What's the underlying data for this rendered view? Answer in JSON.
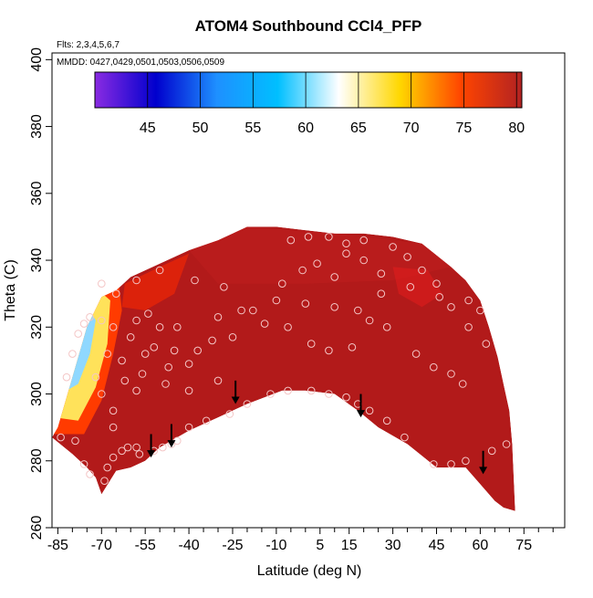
{
  "chart_data": {
    "type": "heatmap",
    "title": "ATOM4 Southbound CCl4_PFP",
    "subtitle_flights": "Flts: 2,3,4,5,6,7",
    "subtitle_dates": "MMDD: 0427,0429,0501,0503,0506,0509",
    "xlabel": "Latitude (deg N)",
    "ylabel": "Theta (C)",
    "x_tick_labels": [
      "-85",
      "-70",
      "-55",
      "-40",
      "-25",
      "-10",
      "5",
      "15",
      "30",
      "45",
      "60",
      "75"
    ],
    "x_tick_values": [
      -85,
      -70,
      -55,
      -40,
      -25,
      -10,
      5,
      15,
      30,
      45,
      60,
      75
    ],
    "x_minor_ticks": [
      -80,
      -75,
      -65,
      -60,
      -50,
      -45,
      -35,
      -30,
      -20,
      -15,
      -5,
      0,
      10,
      20,
      25,
      35,
      40,
      50,
      55,
      65,
      70,
      80,
      85
    ],
    "y_tick_labels": [
      "260",
      "280",
      "300",
      "320",
      "340",
      "360",
      "380",
      "400"
    ],
    "y_tick_values": [
      260,
      280,
      300,
      320,
      340,
      360,
      380,
      400
    ],
    "xlim": [
      -87,
      89
    ],
    "ylim": [
      260,
      402
    ],
    "colorbar": {
      "tick_labels": [
        "45",
        "50",
        "55",
        "60",
        "65",
        "70",
        "75",
        "80"
      ],
      "tick_values": [
        45,
        50,
        55,
        60,
        65,
        70,
        75,
        80
      ],
      "range": [
        40,
        80.5
      ],
      "colors": [
        "#8a2be2",
        "#0000cd",
        "#1e90ff",
        "#00bfff",
        "#ffffff",
        "#ffd700",
        "#ff4500",
        "#b22222"
      ]
    },
    "field_boundary": {
      "upper_theta": [
        [
          -87,
          287
        ],
        [
          -85,
          290
        ],
        [
          -80,
          305
        ],
        [
          -75,
          320
        ],
        [
          -70,
          329
        ],
        [
          -65,
          331
        ],
        [
          -60,
          335
        ],
        [
          -50,
          339
        ],
        [
          -40,
          343
        ],
        [
          -30,
          346
        ],
        [
          -20,
          350
        ],
        [
          -10,
          350
        ],
        [
          0,
          349
        ],
        [
          10,
          348
        ],
        [
          20,
          348
        ],
        [
          30,
          347
        ],
        [
          40,
          345
        ],
        [
          50,
          338
        ],
        [
          55,
          334
        ],
        [
          60,
          328
        ],
        [
          63,
          320
        ],
        [
          66,
          311
        ],
        [
          68,
          303
        ],
        [
          70,
          295
        ],
        [
          71,
          285
        ],
        [
          72,
          265
        ]
      ],
      "lower_theta": [
        [
          72,
          265
        ],
        [
          68,
          266
        ],
        [
          65,
          268
        ],
        [
          60,
          273
        ],
        [
          55,
          278
        ],
        [
          45,
          278
        ],
        [
          35,
          285
        ],
        [
          25,
          290
        ],
        [
          18,
          295
        ],
        [
          10,
          300
        ],
        [
          0,
          301
        ],
        [
          -8,
          301
        ],
        [
          -20,
          297
        ],
        [
          -30,
          293
        ],
        [
          -40,
          289
        ],
        [
          -50,
          284
        ],
        [
          -55,
          280
        ],
        [
          -60,
          278
        ],
        [
          -65,
          277
        ],
        [
          -70,
          270
        ],
        [
          -72,
          275
        ],
        [
          -75,
          278
        ],
        [
          -80,
          282
        ],
        [
          -87,
          287
        ]
      ]
    },
    "cold_region": {
      "blue_core": [
        [
          -84,
          300
        ],
        [
          -82,
          310
        ],
        [
          -78,
          319
        ],
        [
          -74,
          325
        ],
        [
          -72,
          322
        ],
        [
          -74,
          312
        ],
        [
          -78,
          303
        ]
      ],
      "light_band": [
        [
          -86,
          293
        ],
        [
          -82,
          306
        ],
        [
          -76,
          322
        ],
        [
          -71,
          331
        ],
        [
          -67,
          328
        ],
        [
          -68,
          315
        ],
        [
          -72,
          302
        ],
        [
          -78,
          292
        ]
      ],
      "yellow_band": [
        [
          -87,
          288
        ],
        [
          -82,
          306
        ],
        [
          -72,
          332
        ],
        [
          -64,
          333
        ],
        [
          -63,
          325
        ],
        [
          -66,
          312
        ],
        [
          -70,
          298
        ],
        [
          -76,
          288
        ]
      ]
    },
    "samples": [
      [
        -84,
        287
      ],
      [
        -79,
        286
      ],
      [
        -76,
        279
      ],
      [
        -74,
        276
      ],
      [
        -69,
        274
      ],
      [
        -68,
        278
      ],
      [
        -66,
        281
      ],
      [
        -63,
        283
      ],
      [
        -61,
        284
      ],
      [
        -58,
        284
      ],
      [
        -57,
        282
      ],
      [
        -52,
        283
      ],
      [
        -49,
        284
      ],
      [
        -46,
        285
      ],
      [
        -44,
        286
      ],
      [
        -40,
        290
      ],
      [
        -34,
        292
      ],
      [
        -26,
        294
      ],
      [
        -20,
        297
      ],
      [
        -12,
        300
      ],
      [
        -6,
        301
      ],
      [
        2,
        301
      ],
      [
        8,
        300
      ],
      [
        14,
        299
      ],
      [
        18,
        297
      ],
      [
        22,
        295
      ],
      [
        28,
        292
      ],
      [
        34,
        287
      ],
      [
        44,
        279
      ],
      [
        50,
        279
      ],
      [
        55,
        280
      ],
      [
        64,
        283
      ],
      [
        69,
        285
      ],
      [
        -70,
        300
      ],
      [
        -62,
        304
      ],
      [
        -56,
        306
      ],
      [
        -48,
        303
      ],
      [
        -40,
        301
      ],
      [
        -30,
        304
      ],
      [
        -66,
        295
      ],
      [
        -66,
        290
      ],
      [
        -72,
        305
      ],
      [
        -58,
        301
      ],
      [
        -52,
        314
      ],
      [
        -45,
        313
      ],
      [
        -37,
        313
      ],
      [
        -32,
        316
      ],
      [
        -25,
        317
      ],
      [
        -14,
        321
      ],
      [
        -22,
        325
      ],
      [
        -8,
        333
      ],
      [
        -1,
        337
      ],
      [
        4,
        339
      ],
      [
        10,
        335
      ],
      [
        14,
        342
      ],
      [
        20,
        340
      ],
      [
        26,
        336
      ],
      [
        -5,
        346
      ],
      [
        1,
        347
      ],
      [
        8,
        347
      ],
      [
        14,
        345
      ],
      [
        20,
        346
      ],
      [
        30,
        344
      ],
      [
        35,
        341
      ],
      [
        40,
        337
      ],
      [
        45,
        333
      ],
      [
        50,
        326
      ],
      [
        56,
        320
      ],
      [
        62,
        315
      ],
      [
        -44,
        320
      ],
      [
        -30,
        323
      ],
      [
        -18,
        325
      ],
      [
        -6,
        320
      ],
      [
        2,
        315
      ],
      [
        8,
        313
      ],
      [
        16,
        314
      ],
      [
        22,
        322
      ],
      [
        28,
        320
      ],
      [
        38,
        312
      ],
      [
        44,
        308
      ],
      [
        50,
        306
      ],
      [
        54,
        303
      ],
      [
        -60,
        317
      ],
      [
        -66,
        320
      ],
      [
        -58,
        322
      ],
      [
        -54,
        324
      ],
      [
        -50,
        320
      ],
      [
        -40,
        309
      ],
      [
        -47,
        308
      ],
      [
        -55,
        312
      ],
      [
        -63,
        310
      ],
      [
        -68,
        312
      ],
      [
        -70,
        322
      ],
      [
        -74,
        323
      ],
      [
        -76,
        321
      ],
      [
        -78,
        318
      ],
      [
        -80,
        312
      ],
      [
        -82,
        305
      ],
      [
        -70,
        333
      ],
      [
        -65,
        330
      ],
      [
        -58,
        334
      ],
      [
        -50,
        337
      ],
      [
        -38,
        334
      ],
      [
        -28,
        332
      ],
      [
        -10,
        328
      ],
      [
        0,
        327
      ],
      [
        10,
        326
      ],
      [
        18,
        325
      ],
      [
        26,
        330
      ],
      [
        36,
        332
      ],
      [
        46,
        329
      ],
      [
        56,
        328
      ],
      [
        60,
        325
      ]
    ],
    "arrows_latitude": [
      -53,
      -46,
      -24,
      19,
      61
    ],
    "arrows_theta": [
      [
        288,
        281
      ],
      [
        291,
        284
      ],
      [
        304,
        297
      ],
      [
        300,
        293
      ],
      [
        283,
        276
      ]
    ]
  }
}
